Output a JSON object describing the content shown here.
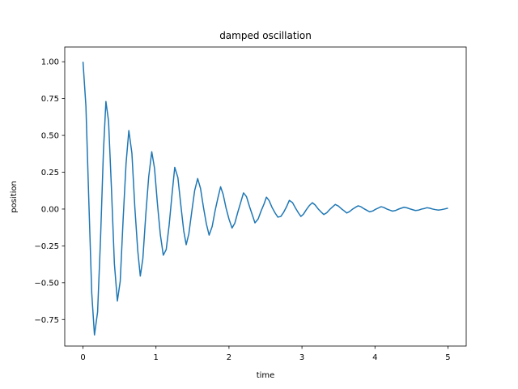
{
  "chart_data": {
    "type": "line",
    "title": "damped oscillation",
    "xlabel": "time",
    "ylabel": "position",
    "xlim": [
      -0.25,
      5.25
    ],
    "ylim": [
      -0.93,
      1.1
    ],
    "xticks": [
      0,
      1,
      2,
      3,
      4,
      5
    ],
    "yticks": [
      -0.75,
      -0.5,
      -0.25,
      0.0,
      0.25,
      0.5,
      0.75,
      1.0
    ],
    "xtick_labels": [
      "0",
      "1",
      "2",
      "3",
      "4",
      "5"
    ],
    "ytick_labels": [
      "−0.75",
      "−0.50",
      "−0.25",
      "0.00",
      "0.25",
      "0.50",
      "0.75",
      "1.00"
    ],
    "grid": false,
    "series": [
      {
        "color": "#1f77b4",
        "x": [
          0,
          0.04,
          0.08,
          0.12,
          0.157,
          0.2,
          0.24,
          0.28,
          0.314,
          0.35,
          0.39,
          0.43,
          0.471,
          0.51,
          0.55,
          0.59,
          0.628,
          0.67,
          0.71,
          0.75,
          0.785,
          0.82,
          0.86,
          0.9,
          0.942,
          0.98,
          1.02,
          1.06,
          1.1,
          1.14,
          1.18,
          1.22,
          1.257,
          1.3,
          1.34,
          1.38,
          1.414,
          1.45,
          1.49,
          1.53,
          1.571,
          1.61,
          1.65,
          1.69,
          1.728,
          1.77,
          1.81,
          1.85,
          1.885,
          1.92,
          1.96,
          2.0,
          2.042,
          2.08,
          2.12,
          2.16,
          2.199,
          2.24,
          2.28,
          2.32,
          2.356,
          2.4,
          2.44,
          2.48,
          2.513,
          2.55,
          2.59,
          2.63,
          2.67,
          2.71,
          2.75,
          2.79,
          2.827,
          2.87,
          2.91,
          2.95,
          2.985,
          3.02,
          3.06,
          3.1,
          3.142,
          3.18,
          3.22,
          3.26,
          3.299,
          3.34,
          3.38,
          3.42,
          3.456,
          3.5,
          3.54,
          3.58,
          3.613,
          3.65,
          3.69,
          3.73,
          3.77,
          3.81,
          3.85,
          3.89,
          3.927,
          3.97,
          4.01,
          4.05,
          4.084,
          4.12,
          4.16,
          4.2,
          4.241,
          4.28,
          4.32,
          4.36,
          4.398,
          4.44,
          4.48,
          4.52,
          4.555,
          4.6,
          4.64,
          4.68,
          4.712,
          4.75,
          4.79,
          4.83,
          4.87,
          4.91,
          4.95,
          5.0
        ],
        "y": [
          1.0,
          0.699,
          0.052,
          -0.572,
          -0.855,
          -0.699,
          -0.205,
          0.392,
          0.73,
          0.598,
          0.137,
          -0.37,
          -0.624,
          -0.49,
          -0.068,
          0.31,
          0.533,
          0.379,
          0.013,
          -0.281,
          -0.455,
          -0.337,
          -0.04,
          0.218,
          0.389,
          0.277,
          0.034,
          -0.175,
          -0.313,
          -0.275,
          -0.11,
          0.101,
          0.283,
          0.214,
          0.028,
          -0.148,
          -0.242,
          -0.168,
          -0.018,
          0.126,
          0.207,
          0.14,
          0.013,
          -0.1,
          -0.177,
          -0.118,
          -0.011,
          0.079,
          0.151,
          0.1,
          0.007,
          -0.068,
          -0.129,
          -0.096,
          -0.023,
          0.044,
          0.11,
          0.084,
          0.019,
          -0.04,
          -0.094,
          -0.067,
          -0.013,
          0.034,
          0.081,
          0.057,
          0.011,
          -0.025,
          -0.055,
          -0.05,
          -0.021,
          0.017,
          0.059,
          0.044,
          0.008,
          -0.025,
          -0.05,
          -0.035,
          -0.004,
          0.023,
          0.043,
          0.028,
          0.002,
          -0.019,
          -0.037,
          -0.025,
          -0.003,
          0.015,
          0.031,
          0.02,
          0.002,
          -0.013,
          -0.027,
          -0.018,
          -0.002,
          0.011,
          0.022,
          0.015,
          0.002,
          -0.009,
          -0.019,
          -0.013,
          -0.001,
          0.008,
          0.016,
          0.011,
          0.001,
          -0.007,
          -0.014,
          -0.01,
          -0.001,
          0.006,
          0.012,
          0.008,
          0.001,
          -0.005,
          -0.01,
          -0.007,
          0.0,
          0.004,
          0.009,
          0.006,
          0.0,
          -0.004,
          -0.007,
          -0.004,
          0.0,
          0.006
        ]
      }
    ]
  }
}
